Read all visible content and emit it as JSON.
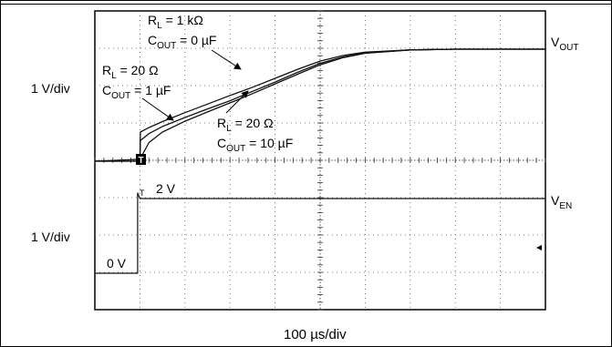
{
  "chart_data": {
    "type": "line",
    "title": "",
    "xlabel": "100 µs/div",
    "ylabel_top": "1 V/div",
    "ylabel_bottom": "1 V/div",
    "x_unit": "µs",
    "x_per_div": 100,
    "x_divisions": 10,
    "y_divisions": 8,
    "grid": true,
    "grid_style": "dotted",
    "channels": {
      "vout": {
        "base": "V",
        "subscript": "OUT"
      },
      "ven": {
        "base": "V",
        "subscript": "EN"
      }
    },
    "series": [
      {
        "name": "RL = 1 kΩ, COUT = 0 µF",
        "channel": "vout",
        "x": [
          0,
          100,
          101,
          120,
          150,
          200,
          250,
          300,
          350,
          400,
          450,
          500,
          550,
          600,
          700,
          800,
          900,
          1000
        ],
        "y": [
          0,
          0,
          0.78,
          0.9,
          1.06,
          1.3,
          1.53,
          1.76,
          1.98,
          2.22,
          2.46,
          2.68,
          2.83,
          2.92,
          2.98,
          3.0,
          3.0,
          3.0
        ]
      },
      {
        "name": "RL = 20 Ω, COUT = 1 µF",
        "channel": "vout",
        "x": [
          0,
          100,
          101,
          120,
          150,
          200,
          250,
          300,
          350,
          400,
          450,
          500,
          550,
          600,
          700,
          800,
          900,
          1000
        ],
        "y": [
          0,
          0,
          0.55,
          0.74,
          0.93,
          1.17,
          1.4,
          1.62,
          1.87,
          2.12,
          2.38,
          2.62,
          2.79,
          2.9,
          2.98,
          3.0,
          3.0,
          3.0
        ]
      },
      {
        "name": "RL = 20 Ω, COUT = 10 µF",
        "channel": "vout",
        "x": [
          0,
          100,
          120,
          150,
          200,
          250,
          300,
          350,
          400,
          450,
          500,
          550,
          600,
          700,
          800,
          900,
          1000
        ],
        "y": [
          0,
          0.05,
          0.5,
          0.78,
          1.07,
          1.32,
          1.56,
          1.81,
          2.07,
          2.33,
          2.58,
          2.77,
          2.89,
          2.98,
          3.0,
          3.0,
          3.0
        ]
      },
      {
        "name": "VEN",
        "channel": "ven",
        "x": [
          0,
          95,
          95,
          100,
          1000
        ],
        "y": [
          0,
          0,
          2.15,
          2.0,
          2.0
        ]
      }
    ],
    "annotations": [
      {
        "id": "a1",
        "line1": {
          "base": "R",
          "sub": "L",
          "rest": " = 1 kΩ"
        },
        "line2": {
          "base": "C",
          "sub": "OUT",
          "rest": " = 0 µF"
        }
      },
      {
        "id": "a2",
        "line1": {
          "base": "R",
          "sub": "L",
          "rest": " = 20 Ω"
        },
        "line2": {
          "base": "C",
          "sub": "OUT",
          "rest": " = 1 µF"
        }
      },
      {
        "id": "a3",
        "line1": {
          "base": "R",
          "sub": "L",
          "rest": " = 20 Ω"
        },
        "line2": {
          "base": "C",
          "sub": "OUT",
          "rest": " = 10 µF"
        }
      }
    ],
    "level_labels": {
      "high": "2 V",
      "low": "0 V"
    },
    "trigger_marker": "T"
  }
}
